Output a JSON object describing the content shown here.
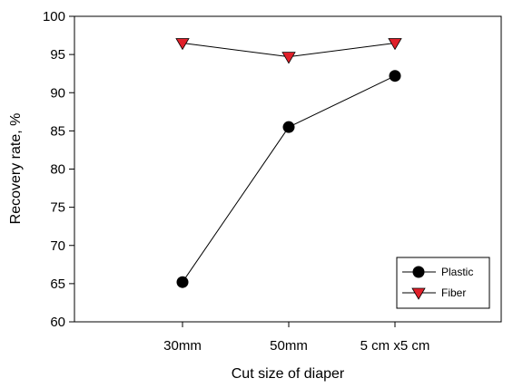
{
  "chart_data": {
    "type": "line",
    "title": "",
    "xlabel": "Cut size of diaper",
    "ylabel": "Recovery rate, %",
    "categories": [
      "30mm",
      "50mm",
      "5 cm x5 cm"
    ],
    "ylim": [
      60,
      100
    ],
    "yticks": [
      60,
      65,
      70,
      75,
      80,
      85,
      90,
      95,
      100
    ],
    "grid": false,
    "legend_position": "bottom-right",
    "series": [
      {
        "name": "Plastic",
        "values": [
          65.2,
          85.5,
          92.2
        ],
        "marker": "circle",
        "color": "#000000"
      },
      {
        "name": "Fiber",
        "values": [
          96.5,
          94.7,
          96.5
        ],
        "marker": "triangle-down",
        "color": "#e0202a"
      }
    ]
  }
}
